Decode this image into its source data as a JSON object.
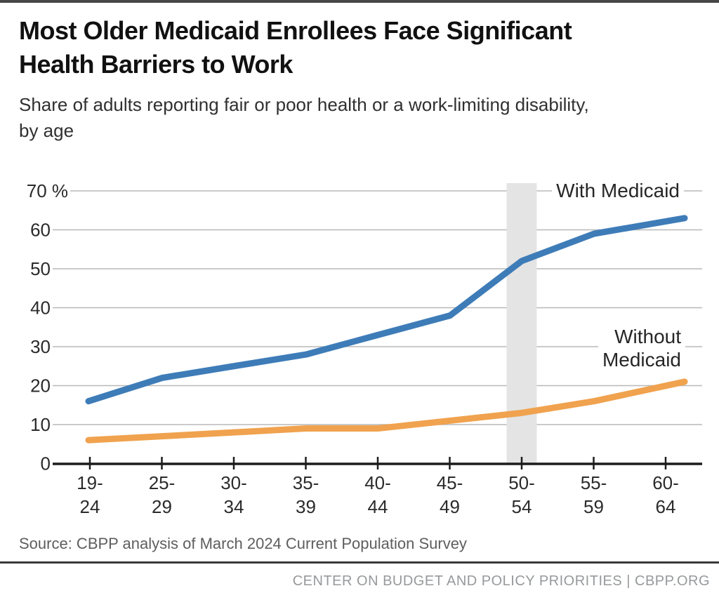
{
  "page": {
    "title_line1": "Most Older Medicaid Enrollees Face Significant",
    "title_line2": "Health Barriers to Work",
    "subtitle_line1": "Share of adults reporting fair or poor health or a work-limiting disability,",
    "subtitle_line2": "by age",
    "source": "Source: CBPP analysis of March 2024 Current Population Survey",
    "footer": "CENTER ON BUDGET AND POLICY PRIORITIES | CBPP.ORG"
  },
  "chart_data": {
    "type": "line",
    "title": "Most Older Medicaid Enrollees Face Significant Health Barriers to Work",
    "subtitle": "Share of adults reporting fair or poor health or a work-limiting disability, by age",
    "categories": [
      "19-24",
      "25-29",
      "30-34",
      "35-39",
      "40-44",
      "45-49",
      "50-54",
      "55-59",
      "60-64"
    ],
    "series": [
      {
        "name": "With Medicaid",
        "label_lines": [
          "With Medicaid"
        ],
        "color": "#3e7cb8",
        "values": [
          16,
          22,
          25,
          28,
          33,
          38,
          52,
          59,
          63
        ]
      },
      {
        "name": "Without Medicaid",
        "label_lines": [
          "Without",
          "Medicaid"
        ],
        "color": "#f0a24e",
        "values": [
          6,
          7,
          8,
          9,
          9,
          11,
          13,
          16,
          21
        ]
      }
    ],
    "xlabel": "",
    "ylabel": "",
    "ylim": [
      0,
      70
    ],
    "ytick_step": 10,
    "ytick_labels": [
      "0",
      "10",
      "20",
      "30",
      "40",
      "50",
      "60",
      "70 %"
    ],
    "grid": "horizontal",
    "legend_position": "inline-right",
    "highlight_band_category": "50-54",
    "highlight_band_color": "#e4e4e4",
    "source": "Source: CBPP analysis of March 2024 Current Population Survey"
  }
}
